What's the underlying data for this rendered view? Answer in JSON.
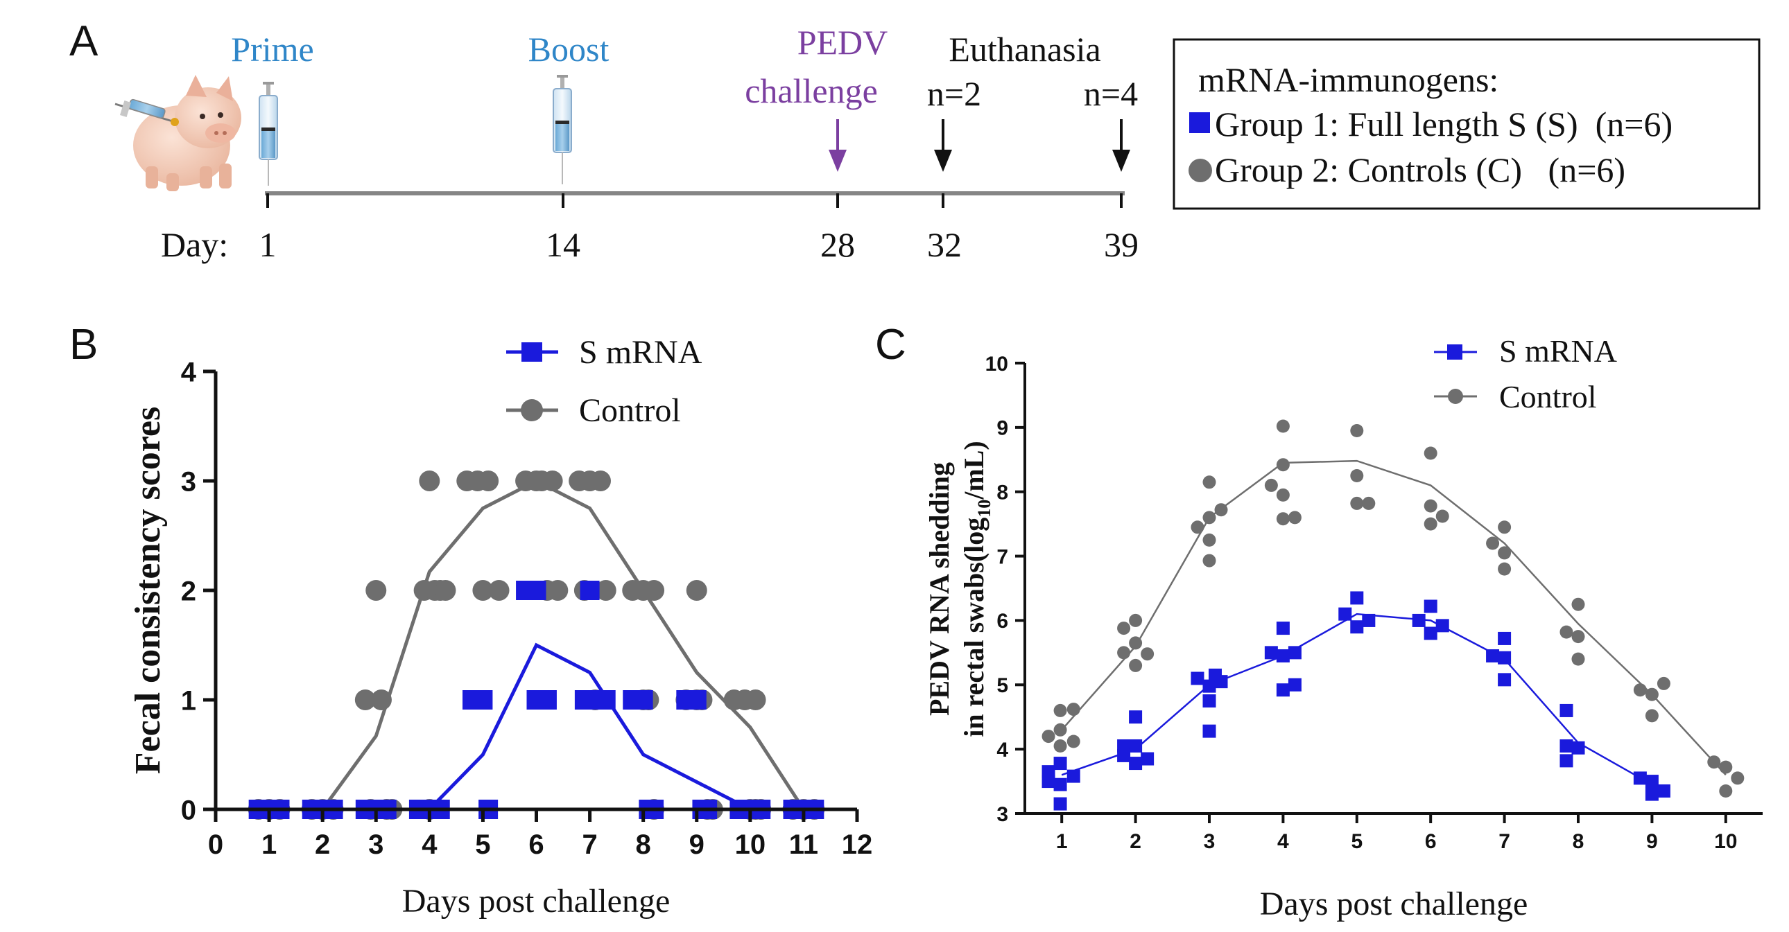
{
  "panel_labels": {
    "a": "A",
    "b": "B",
    "c": "C"
  },
  "timeline": {
    "day_prefix": "Day:",
    "events": [
      {
        "label": "Prime",
        "day": "1",
        "color": "#2f86c8"
      },
      {
        "label": "Boost",
        "day": "14",
        "color": "#2f86c8"
      },
      {
        "label_line1": "PEDV",
        "label_line2": "challenge",
        "day": "28",
        "color": "#7b3fa0"
      },
      {
        "label": "Euthanasia",
        "day": "32",
        "n": "n=2"
      },
      {
        "day": "39",
        "n": "n=4"
      }
    ]
  },
  "groups_box": {
    "title": "mRNA-immunogens:",
    "group1": "Group 1: Full length S (S)  (n=6)",
    "group2": "Group 2: Controls (C)   (n=6)"
  },
  "colors": {
    "s_mrna": "#1a1adc",
    "control": "#6e6e6e",
    "axis": "#111111"
  },
  "chart_data": [
    {
      "type": "scatter",
      "panel": "B",
      "xlabel": "Days post challenge",
      "ylabel": "Fecal consistency scores",
      "xlim": [
        0,
        12
      ],
      "ylim": [
        0,
        4
      ],
      "xticks": [
        "0",
        "1",
        "2",
        "3",
        "4",
        "5",
        "6",
        "7",
        "8",
        "9",
        "10",
        "11",
        "12"
      ],
      "yticks": [
        "0",
        "1",
        "2",
        "3",
        "4"
      ],
      "legend": "top-right",
      "series": [
        {
          "name": "S mRNA",
          "marker": "square",
          "mean_line": [
            [
              1,
              0
            ],
            [
              2,
              0
            ],
            [
              3,
              0
            ],
            [
              4,
              0
            ],
            [
              5,
              0.5
            ],
            [
              6,
              1.5
            ],
            [
              7,
              1.25
            ],
            [
              8,
              0.5
            ],
            [
              9,
              0.25
            ],
            [
              10,
              0
            ],
            [
              11,
              0
            ]
          ],
          "points": [
            [
              0.8,
              0
            ],
            [
              1,
              0
            ],
            [
              1.2,
              0
            ],
            [
              1.8,
              0
            ],
            [
              2,
              0
            ],
            [
              2.2,
              0
            ],
            [
              2.8,
              0
            ],
            [
              3,
              0
            ],
            [
              3.2,
              0
            ],
            [
              3.8,
              0
            ],
            [
              4,
              0
            ],
            [
              4.2,
              0
            ],
            [
              4.8,
              1
            ],
            [
              5,
              1
            ],
            [
              5.1,
              0
            ],
            [
              5.8,
              2
            ],
            [
              6,
              2
            ],
            [
              6,
              1
            ],
            [
              6.2,
              1
            ],
            [
              6.9,
              1
            ],
            [
              7,
              2
            ],
            [
              7.1,
              1
            ],
            [
              7.3,
              1
            ],
            [
              7.8,
              1
            ],
            [
              8,
              1
            ],
            [
              8.1,
              0
            ],
            [
              8.2,
              0
            ],
            [
              8.8,
              1
            ],
            [
              9,
              1
            ],
            [
              9.1,
              0
            ],
            [
              9.2,
              0
            ],
            [
              9.8,
              0
            ],
            [
              10,
              0
            ],
            [
              10.2,
              0
            ],
            [
              10.8,
              0
            ],
            [
              11,
              0
            ],
            [
              11.2,
              0
            ]
          ]
        },
        {
          "name": "Control",
          "marker": "circle",
          "mean_line": [
            [
              1,
              0
            ],
            [
              2,
              0
            ],
            [
              3,
              0.67
            ],
            [
              4,
              2.17
            ],
            [
              5,
              2.75
            ],
            [
              6,
              3
            ],
            [
              7,
              2.75
            ],
            [
              8,
              2
            ],
            [
              9,
              1.25
            ],
            [
              10,
              0.75
            ],
            [
              11,
              0
            ]
          ],
          "points": [
            [
              0.8,
              0
            ],
            [
              1,
              0
            ],
            [
              1.2,
              0
            ],
            [
              1.8,
              0
            ],
            [
              2,
              0
            ],
            [
              2.2,
              0
            ],
            [
              2.8,
              1
            ],
            [
              3.1,
              1
            ],
            [
              3,
              2
            ],
            [
              2.9,
              0
            ],
            [
              3.2,
              0
            ],
            [
              3.3,
              0
            ],
            [
              3.9,
              2
            ],
            [
              4,
              3
            ],
            [
              4.1,
              2
            ],
            [
              4.2,
              2
            ],
            [
              4.3,
              2
            ],
            [
              4,
              0
            ],
            [
              4.7,
              3
            ],
            [
              4.9,
              3
            ],
            [
              5.1,
              3
            ],
            [
              5,
              2
            ],
            [
              5.3,
              2
            ],
            [
              5.8,
              3
            ],
            [
              6,
              3
            ],
            [
              6.1,
              3
            ],
            [
              6.3,
              3
            ],
            [
              6.2,
              2
            ],
            [
              6.4,
              2
            ],
            [
              6.8,
              3
            ],
            [
              7,
              3
            ],
            [
              7.2,
              3
            ],
            [
              6.9,
              2
            ],
            [
              7.1,
              1
            ],
            [
              7.3,
              2
            ],
            [
              7.8,
              2
            ],
            [
              8,
              2
            ],
            [
              8.2,
              2
            ],
            [
              8,
              1
            ],
            [
              8.1,
              1
            ],
            [
              8.2,
              0
            ],
            [
              8.8,
              1
            ],
            [
              9,
              2
            ],
            [
              9,
              1
            ],
            [
              9.1,
              1
            ],
            [
              9.2,
              0
            ],
            [
              9.3,
              0
            ],
            [
              9.7,
              1
            ],
            [
              9.9,
              1
            ],
            [
              10.1,
              1
            ],
            [
              10.1,
              0
            ],
            [
              10.2,
              0
            ],
            [
              10,
              0
            ],
            [
              10.8,
              0
            ],
            [
              11,
              0
            ],
            [
              11.2,
              0
            ]
          ]
        }
      ]
    },
    {
      "type": "scatter",
      "panel": "C",
      "xlabel": "Days post challenge",
      "ylabel_line1": "PEDV RNA shedding",
      "ylabel_line2_pre": "in rectal swabs(log",
      "ylabel_sub": "10",
      "ylabel_line2_post": "/mL)",
      "xlim": [
        0.5,
        10.5
      ],
      "ylim": [
        3,
        10
      ],
      "xticks": [
        "1",
        "2",
        "3",
        "4",
        "5",
        "6",
        "7",
        "8",
        "9",
        "10"
      ],
      "yticks": [
        "3",
        "4",
        "5",
        "6",
        "7",
        "8",
        "9",
        "10"
      ],
      "legend": "top-right",
      "series": [
        {
          "name": "S mRNA",
          "marker": "square",
          "mean_line": [
            [
              1,
              3.6
            ],
            [
              2,
              4.0
            ],
            [
              3,
              5.0
            ],
            [
              4,
              5.45
            ],
            [
              5,
              6.1
            ],
            [
              6,
              6.0
            ],
            [
              7,
              5.4
            ],
            [
              8,
              4.1
            ],
            [
              9,
              3.45
            ]
          ],
          "points": [
            [
              0.82,
              3.5
            ],
            [
              0.82,
              3.65
            ],
            [
              0.98,
              3.78
            ],
            [
              0.98,
              3.45
            ],
            [
              0.98,
              3.15
            ],
            [
              1.16,
              3.58
            ],
            [
              1.84,
              4.05
            ],
            [
              1.84,
              3.9
            ],
            [
              2.0,
              4.5
            ],
            [
              2.0,
              4.05
            ],
            [
              2.0,
              3.78
            ],
            [
              2.16,
              3.85
            ],
            [
              2.84,
              5.1
            ],
            [
              3.0,
              4.98
            ],
            [
              3.0,
              4.75
            ],
            [
              3.0,
              4.28
            ],
            [
              3.08,
              5.15
            ],
            [
              3.16,
              5.05
            ],
            [
              3.84,
              5.5
            ],
            [
              4.0,
              5.88
            ],
            [
              4.0,
              5.45
            ],
            [
              4.0,
              4.92
            ],
            [
              4.16,
              5.5
            ],
            [
              4.16,
              5.0
            ],
            [
              4.84,
              6.1
            ],
            [
              5.0,
              6.35
            ],
            [
              5.0,
              5.9
            ],
            [
              5.16,
              6.0
            ],
            [
              5.84,
              6.0
            ],
            [
              6.0,
              6.22
            ],
            [
              6.0,
              5.8
            ],
            [
              6.16,
              5.92
            ],
            [
              6.84,
              5.45
            ],
            [
              7.0,
              5.72
            ],
            [
              7.0,
              5.42
            ],
            [
              7.0,
              5.08
            ],
            [
              7.84,
              4.6
            ],
            [
              7.84,
              4.05
            ],
            [
              7.84,
              3.82
            ],
            [
              8.0,
              4.02
            ],
            [
              8.84,
              3.55
            ],
            [
              9.0,
              3.5
            ],
            [
              9.0,
              3.3
            ],
            [
              9.16,
              3.35
            ]
          ]
        },
        {
          "name": "Control",
          "marker": "circle",
          "mean_line": [
            [
              1,
              4.3
            ],
            [
              2,
              5.6
            ],
            [
              3,
              7.6
            ],
            [
              4,
              8.45
            ],
            [
              5,
              8.48
            ],
            [
              6,
              8.1
            ],
            [
              7,
              7.2
            ],
            [
              8,
              5.95
            ],
            [
              9,
              4.85
            ],
            [
              10,
              3.6
            ]
          ],
          "points": [
            [
              0.82,
              4.2
            ],
            [
              0.98,
              4.6
            ],
            [
              0.98,
              4.3
            ],
            [
              0.98,
              4.05
            ],
            [
              1.16,
              4.62
            ],
            [
              1.16,
              4.12
            ],
            [
              1.84,
              5.88
            ],
            [
              1.84,
              5.5
            ],
            [
              2.0,
              6.0
            ],
            [
              2.0,
              5.65
            ],
            [
              2.0,
              5.3
            ],
            [
              2.16,
              5.48
            ],
            [
              2.84,
              7.45
            ],
            [
              3.0,
              8.15
            ],
            [
              3.0,
              7.6
            ],
            [
              3.0,
              7.25
            ],
            [
              3.0,
              6.93
            ],
            [
              3.16,
              7.72
            ],
            [
              3.84,
              8.1
            ],
            [
              4.0,
              9.02
            ],
            [
              4.0,
              8.42
            ],
            [
              4.0,
              7.95
            ],
            [
              4.0,
              7.58
            ],
            [
              4.16,
              7.6
            ],
            [
              5.0,
              8.95
            ],
            [
              5.0,
              8.25
            ],
            [
              5.0,
              7.82
            ],
            [
              5.16,
              7.82
            ],
            [
              6.0,
              8.6
            ],
            [
              6.0,
              7.78
            ],
            [
              6.0,
              7.5
            ],
            [
              6.16,
              7.62
            ],
            [
              6.84,
              7.2
            ],
            [
              7.0,
              7.45
            ],
            [
              7.0,
              7.05
            ],
            [
              7.0,
              6.8
            ],
            [
              7.84,
              5.82
            ],
            [
              8.0,
              6.25
            ],
            [
              8.0,
              5.75
            ],
            [
              8.0,
              5.4
            ],
            [
              8.84,
              4.92
            ],
            [
              9.0,
              4.85
            ],
            [
              9.0,
              4.52
            ],
            [
              9.16,
              5.02
            ],
            [
              9.84,
              3.8
            ],
            [
              10.0,
              3.72
            ],
            [
              10.0,
              3.35
            ],
            [
              10.16,
              3.55
            ]
          ]
        }
      ]
    }
  ]
}
